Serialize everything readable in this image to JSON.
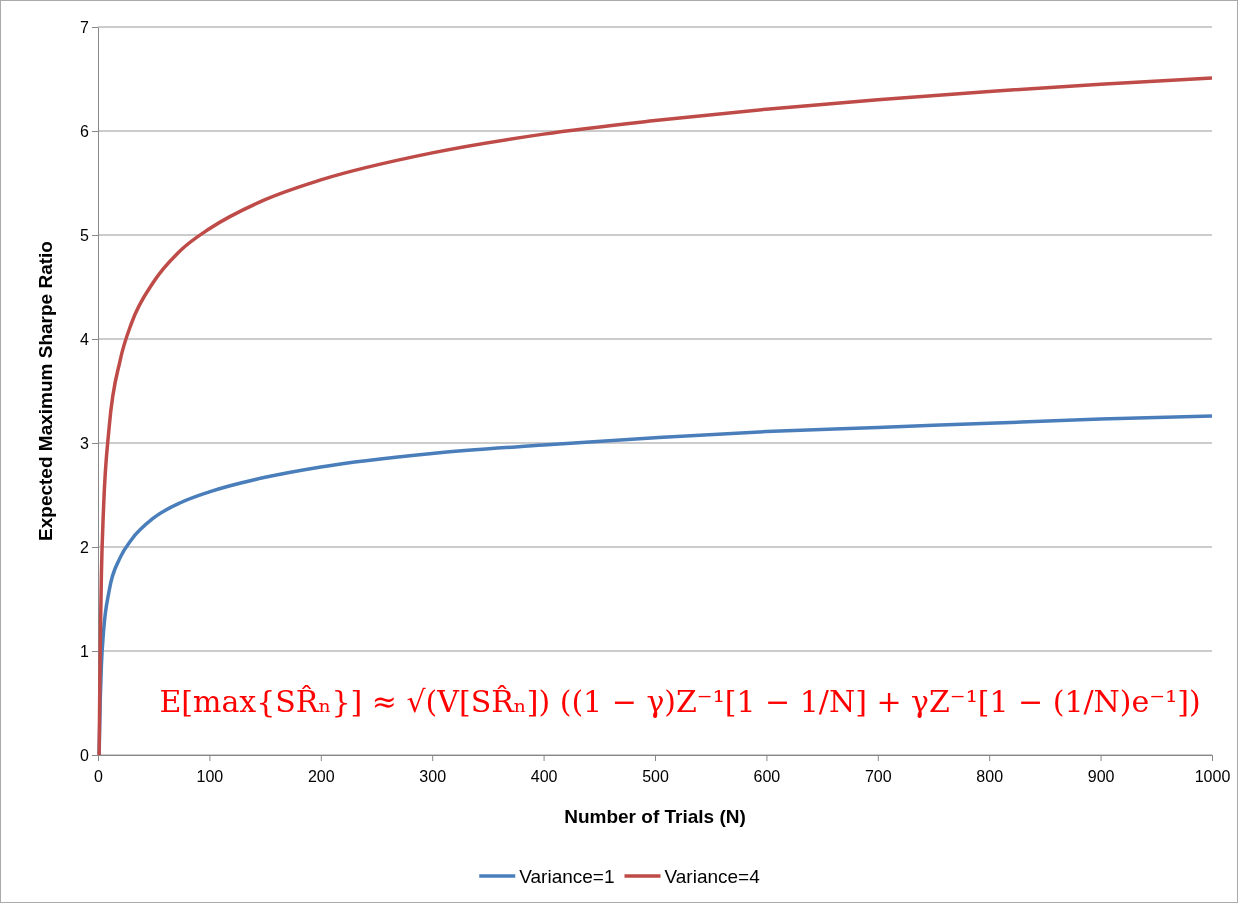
{
  "chart_data": {
    "type": "line",
    "xlabel": "Number of Trials (N)",
    "ylabel": "Expected Maximum Sharpe Ratio",
    "x": [
      1,
      2,
      3,
      5,
      10,
      20,
      30,
      50,
      75,
      100,
      150,
      200,
      300,
      400,
      500,
      600,
      700,
      800,
      900,
      1000
    ],
    "series": [
      {
        "name": "Variance=1",
        "color": "#4a7ebb",
        "values": [
          0,
          0.52,
          0.85,
          1.19,
          1.58,
          1.9,
          2.07,
          2.28,
          2.43,
          2.53,
          2.67,
          2.77,
          2.9,
          2.98,
          3.05,
          3.11,
          3.15,
          3.19,
          3.23,
          3.26
        ]
      },
      {
        "name": "Variance=4",
        "color": "#be4b48",
        "values": [
          0,
          1.04,
          1.71,
          2.38,
          3.15,
          3.8,
          4.15,
          4.55,
          4.86,
          5.06,
          5.34,
          5.53,
          5.79,
          5.97,
          6.1,
          6.21,
          6.3,
          6.38,
          6.45,
          6.51
        ]
      }
    ],
    "xlim": [
      0,
      1000
    ],
    "xticks": [
      0,
      100,
      200,
      300,
      400,
      500,
      600,
      700,
      800,
      900,
      1000
    ],
    "ylim": [
      0,
      7
    ],
    "yticks": [
      0,
      1,
      2,
      3,
      4,
      5,
      6,
      7
    ],
    "grid": "y",
    "legend": "bottom",
    "line_style": "solid",
    "annotations": [
      "E[max{SR̂ₙ}] ≈ √(V[SR̂ₙ]) ((1 − γ)Z⁻¹[1 − 1/N] + γZ⁻¹[1 − (1/N)e⁻¹])"
    ]
  }
}
